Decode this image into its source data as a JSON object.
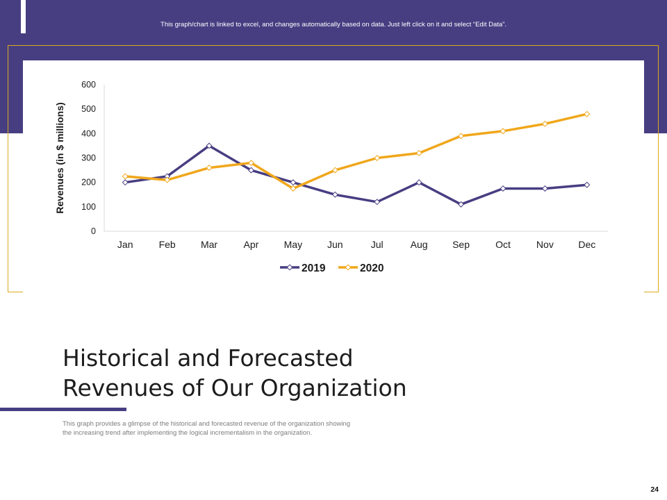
{
  "header": {
    "note": "This graph/chart is linked to excel, and changes automatically based on data. Just left click on it and select “Edit Data”."
  },
  "chart_data": {
    "type": "line",
    "categories": [
      "Jan",
      "Feb",
      "Mar",
      "Apr",
      "May",
      "Jun",
      "Jul",
      "Aug",
      "Sep",
      "Oct",
      "Nov",
      "Dec"
    ],
    "series": [
      {
        "name": "2019",
        "color": "#473e82",
        "values": [
          200,
          225,
          350,
          250,
          200,
          150,
          120,
          200,
          110,
          175,
          175,
          190
        ]
      },
      {
        "name": "2020",
        "color": "#f0a71b",
        "values": [
          225,
          210,
          260,
          280,
          175,
          250,
          300,
          320,
          390,
          410,
          440,
          480
        ]
      }
    ],
    "ylabel": "Revenues (in $ millions)",
    "ylim": [
      0,
      600
    ],
    "yticks": [
      0,
      100,
      200,
      300,
      400,
      500,
      600
    ],
    "grid": false,
    "legend": "bottom"
  },
  "slide": {
    "title_line1": "Historical and Forecasted",
    "title_line2": "Revenues of Our Organization",
    "description": "This graph provides a glimpse of the historical and forecasted revenue of the organization showing the increasing trend after implementing the logical incrementalism in the organization.",
    "page_number": "24"
  }
}
